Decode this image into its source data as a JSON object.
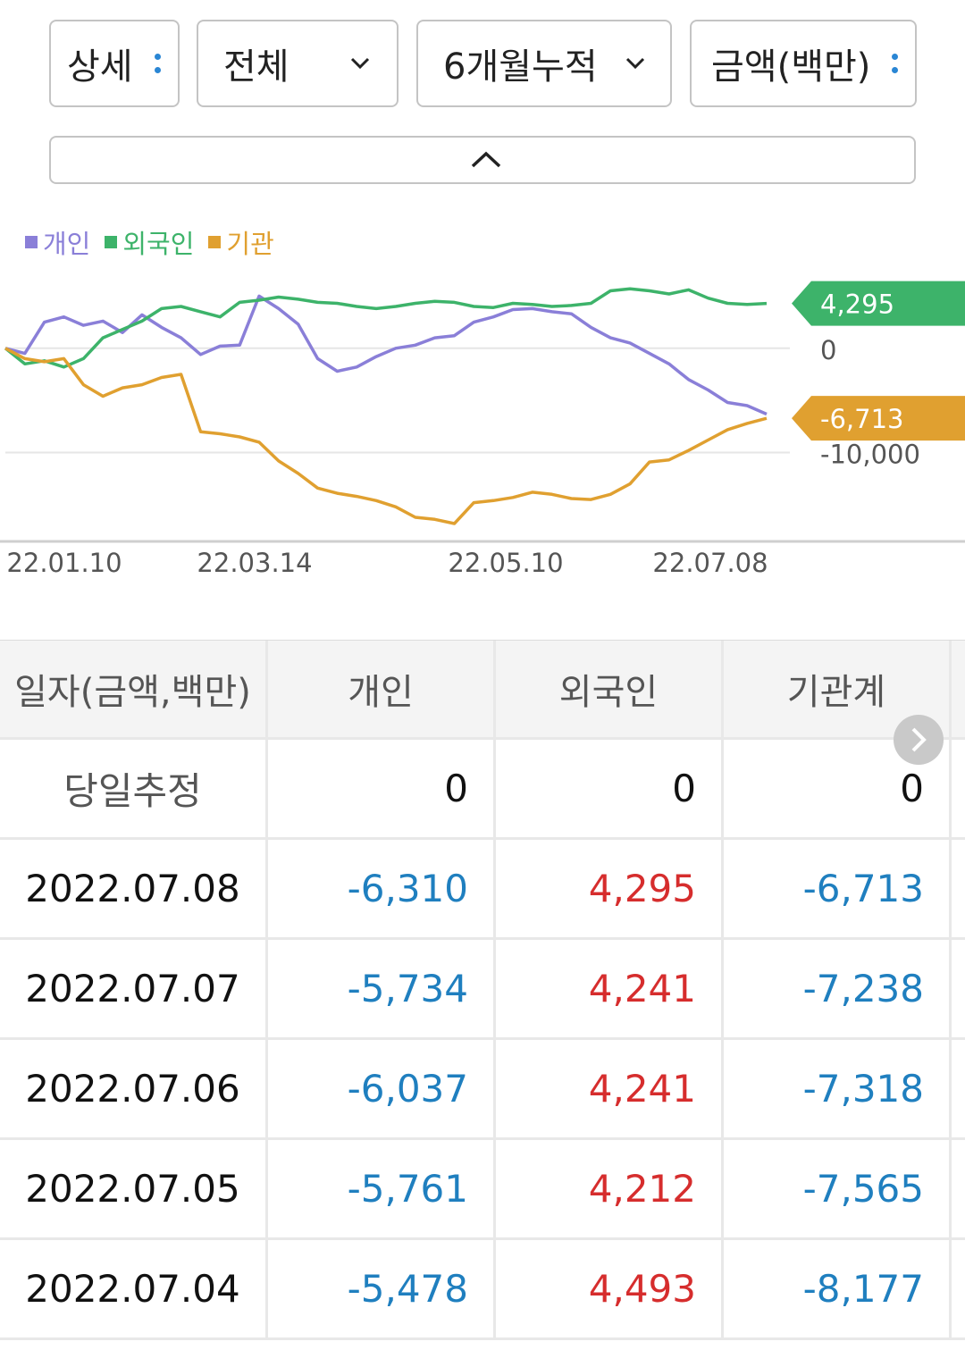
{
  "filters": {
    "detail": "상세",
    "scope": "전체",
    "period": "6개월누적",
    "unit": "금액(백만)"
  },
  "legend": [
    {
      "name": "개인",
      "color": "#8a7fd8"
    },
    {
      "name": "외국인",
      "color": "#3db36a"
    },
    {
      "name": "기관",
      "color": "#e0a030"
    }
  ],
  "chart_data": {
    "type": "line",
    "x_ticks": [
      "22.01.10",
      "22.03.14",
      "22.05.10",
      "22.07.08"
    ],
    "y_ticks": [
      0,
      -10000
    ],
    "y_tick_labels": [
      "0",
      "-10,000"
    ],
    "ylim": [
      -18000,
      7000
    ],
    "series": [
      {
        "name": "개인",
        "color": "#8a7fd8",
        "values": [
          0,
          -500,
          2500,
          3000,
          2200,
          2600,
          1500,
          3200,
          2000,
          1000,
          -600,
          200,
          300,
          5000,
          3800,
          2300,
          -1000,
          -2200,
          -1800,
          -800,
          0,
          300,
          1000,
          1200,
          2500,
          3000,
          3700,
          3800,
          3500,
          3300,
          2000,
          1000,
          500,
          -500,
          -1500,
          -3000,
          -4000,
          -5200,
          -5500,
          -6310
        ]
      },
      {
        "name": "외국인",
        "color": "#3db36a",
        "values": [
          0,
          -1500,
          -1200,
          -1800,
          -1000,
          1000,
          1800,
          2600,
          3800,
          4000,
          3500,
          3000,
          4400,
          4600,
          4900,
          4700,
          4400,
          4300,
          4000,
          3800,
          4000,
          4300,
          4500,
          4400,
          4000,
          3900,
          4300,
          4200,
          4000,
          4100,
          4300,
          5500,
          5700,
          5500,
          5200,
          5600,
          4800,
          4300,
          4200,
          4295
        ]
      },
      {
        "name": "기관",
        "color": "#e0a030",
        "values": [
          0,
          -1000,
          -1300,
          -1000,
          -3500,
          -4600,
          -3800,
          -3500,
          -2800,
          -2500,
          -8000,
          -8200,
          -8500,
          -9000,
          -10800,
          -12000,
          -13400,
          -13900,
          -14200,
          -14600,
          -15200,
          -16200,
          -16400,
          -16800,
          -14800,
          -14600,
          -14300,
          -13800,
          -14000,
          -14400,
          -14500,
          -14000,
          -13000,
          -10900,
          -10700,
          -9800,
          -8800,
          -7800,
          -7200,
          -6713
        ]
      }
    ],
    "end_labels": [
      {
        "text": "4,295",
        "color": "#3db36a"
      },
      {
        "text": "-6,713",
        "color": "#e0a030"
      }
    ]
  },
  "table": {
    "headers": [
      "일자(금액,백만)",
      "개인",
      "외국인",
      "기관계"
    ],
    "estimate": {
      "label": "당일추정",
      "individual": "0",
      "foreign": "0",
      "institution": "0"
    },
    "rows": [
      {
        "date": "2022.07.08",
        "individual": "-6,310",
        "foreign": "4,295",
        "institution": "-6,713"
      },
      {
        "date": "2022.07.07",
        "individual": "-5,734",
        "foreign": "4,241",
        "institution": "-7,238"
      },
      {
        "date": "2022.07.06",
        "individual": "-6,037",
        "foreign": "4,241",
        "institution": "-7,318"
      },
      {
        "date": "2022.07.05",
        "individual": "-5,761",
        "foreign": "4,212",
        "institution": "-7,565"
      },
      {
        "date": "2022.07.04",
        "individual": "-5,478",
        "foreign": "4,493",
        "institution": "-8,177"
      }
    ]
  }
}
